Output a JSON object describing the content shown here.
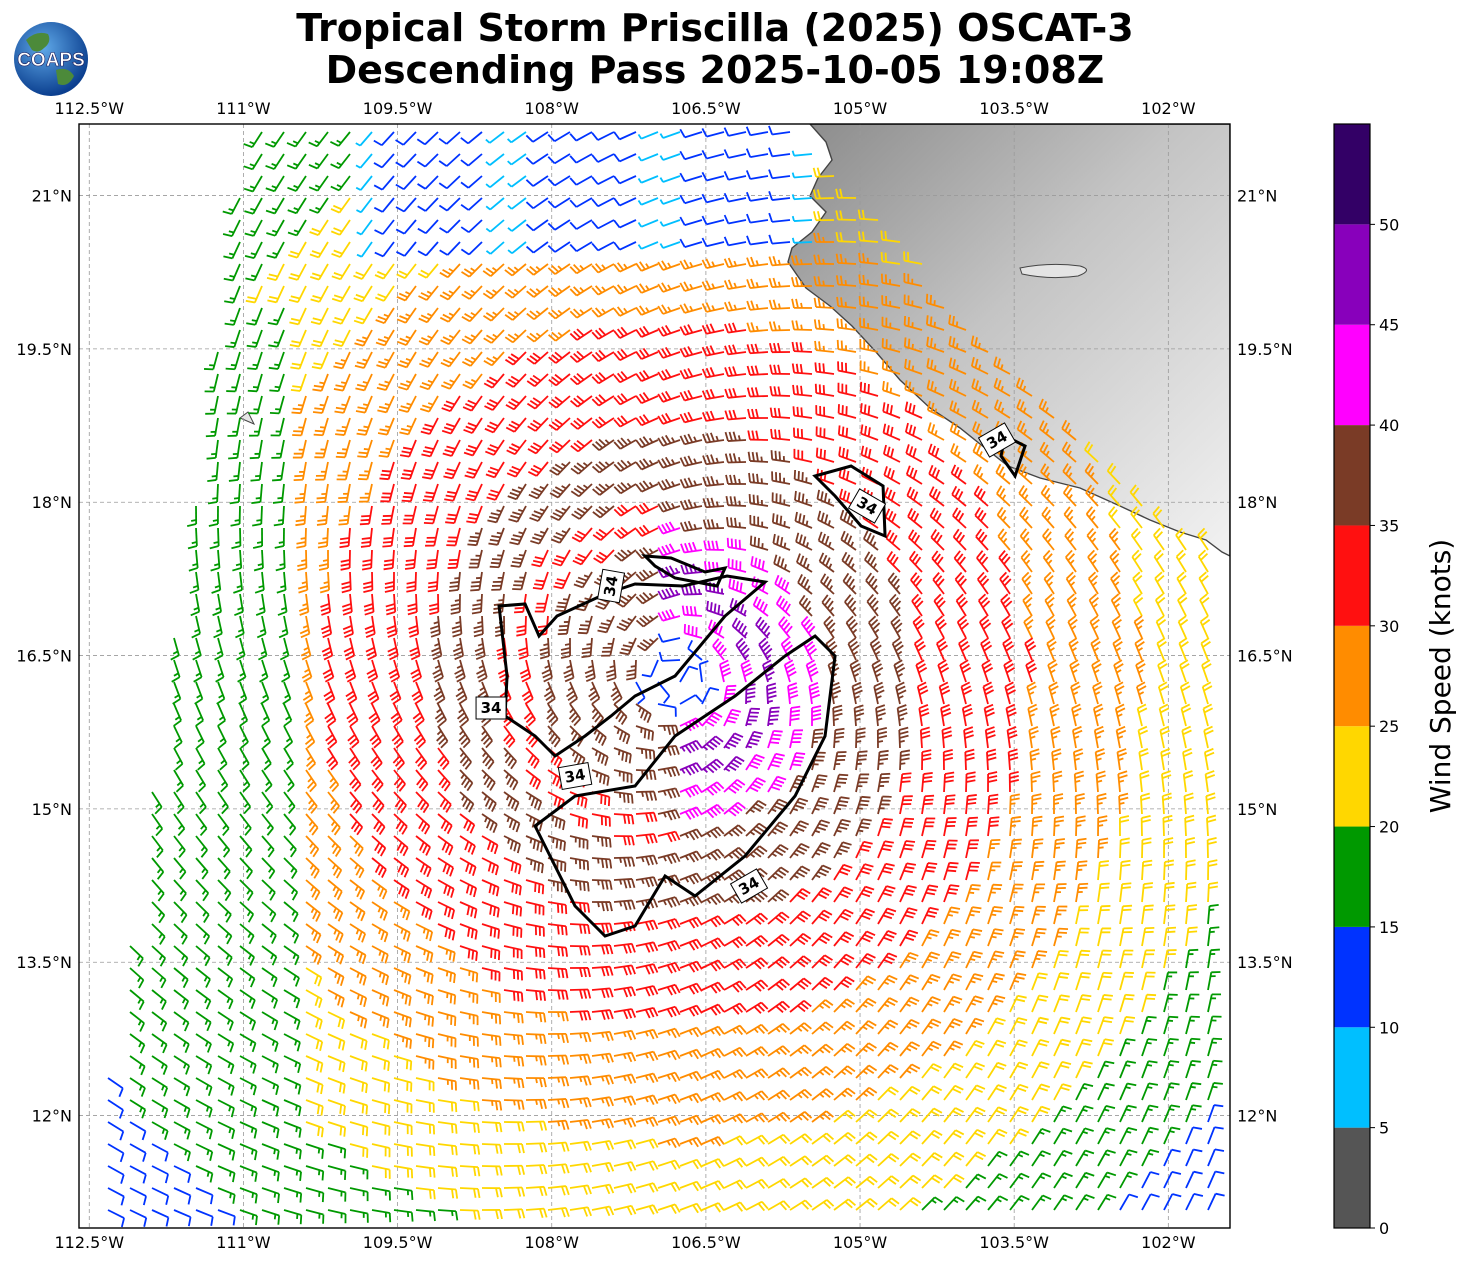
{
  "title": {
    "line1": "Tropical Storm Priscilla (2025) OSCAT-3",
    "line2": "Descending Pass 2025-10-05 19:08Z"
  },
  "logo": {
    "text": "COAPS",
    "icon": "globe-logo-icon"
  },
  "map": {
    "lon_ticks": [
      "112.5°W",
      "111°W",
      "109.5°W",
      "108°W",
      "106.5°W",
      "105°W",
      "103.5°W",
      "102°W"
    ],
    "lat_ticks": [
      "21°N",
      "19.5°N",
      "18°N",
      "16.5°N",
      "15°N",
      "13.5°N",
      "12°N"
    ],
    "lon_range": [
      -112.6,
      -101.4
    ],
    "lat_range": [
      10.9,
      21.7
    ],
    "center": {
      "lon": -106.8,
      "lat": 16.3
    },
    "contour_label": "34",
    "land_color": "#cfcfcf",
    "coast_color": "#444444"
  },
  "colorbar": {
    "label": "Wind Speed (knots)",
    "ticks": [
      "0",
      "5",
      "10",
      "15",
      "20",
      "25",
      "30",
      "35",
      "40",
      "45",
      "50"
    ],
    "colors": [
      "#555555",
      "#00bfff",
      "#0033ff",
      "#009900",
      "#ffd700",
      "#ff8c00",
      "#ff1010",
      "#7a3b26",
      "#ff00ff",
      "#8800bb",
      "#330066"
    ],
    "range": [
      0,
      55
    ]
  }
}
